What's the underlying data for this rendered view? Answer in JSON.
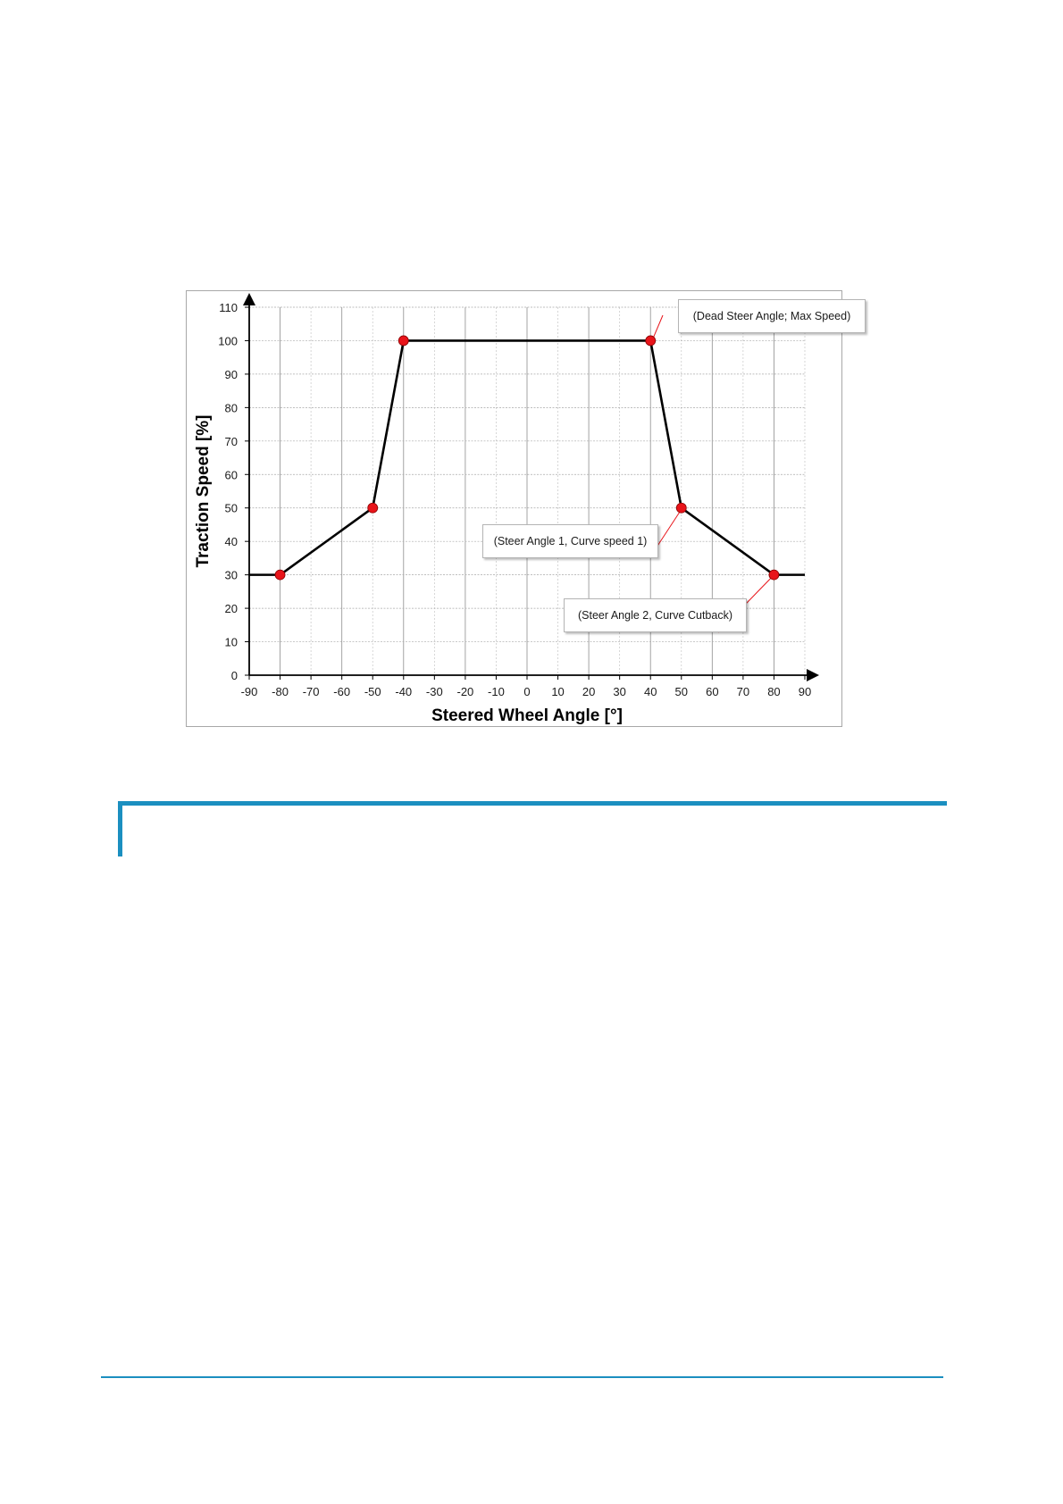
{
  "chart_data": {
    "type": "line",
    "xlabel": "Steered Wheel Angle [°]",
    "ylabel": "Traction Speed [%]",
    "xlim": [
      -90,
      90
    ],
    "ylim": [
      0,
      110
    ],
    "x_ticks": [
      -90,
      -80,
      -70,
      -60,
      -50,
      -40,
      -30,
      -20,
      -10,
      0,
      10,
      20,
      30,
      40,
      50,
      60,
      70,
      80,
      90
    ],
    "y_ticks": [
      0,
      10,
      20,
      30,
      40,
      50,
      60,
      70,
      80,
      90,
      100,
      110
    ],
    "grid": true,
    "line_color": "#000000",
    "marker_color": "#e8141a",
    "series": [
      {
        "x": [
          -90,
          -80,
          -50,
          -40,
          40,
          50,
          80,
          90
        ],
        "y": [
          30,
          30,
          50,
          100,
          100,
          50,
          30,
          30
        ]
      }
    ],
    "markers": [
      {
        "x": -80,
        "y": 30
      },
      {
        "x": -50,
        "y": 50
      },
      {
        "x": -40,
        "y": 100
      },
      {
        "x": 40,
        "y": 100
      },
      {
        "x": 50,
        "y": 50
      },
      {
        "x": 80,
        "y": 30
      }
    ],
    "annotations": [
      {
        "text": "(Dead Steer Angle;  Max Speed)",
        "target": {
          "x": 40,
          "y": 100
        }
      },
      {
        "text": "(Steer Angle 1, Curve speed 1)",
        "target": {
          "x": 50,
          "y": 50
        }
      },
      {
        "text": "(Steer Angle 2, Curve Cutback)",
        "target": {
          "x": 80,
          "y": 30
        }
      }
    ]
  }
}
